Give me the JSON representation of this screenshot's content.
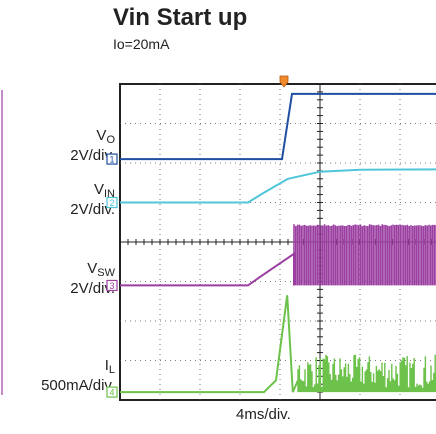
{
  "title": "Vin Start up",
  "subtitle": "Io=20mA",
  "x_scale_label": "4ms/div.",
  "colors": {
    "vo": "#1f4ea3",
    "vin": "#4fc6d8",
    "vsw": "#9b3fa1",
    "il": "#6cc24a",
    "trigger": "#f08a2c",
    "grid": "#555555",
    "frame": "#222222"
  },
  "chart_data": {
    "type": "line",
    "title": "Vin Start up",
    "subtitle": "Io=20mA",
    "xlabel": "4ms/div.",
    "ylabel": "",
    "x_unit": "div",
    "x_divisions": 10,
    "y_divisions": 8,
    "grid": true,
    "trigger_position": 4.1,
    "series": [
      {
        "key": "vo",
        "label_main": "V",
        "label_sub": "O",
        "scale": "2V/div.",
        "marker": "1",
        "color": "#1f4ea3",
        "ground_div": 6.1,
        "points": [
          [
            0,
            0
          ],
          [
            4.05,
            0
          ],
          [
            4.3,
            1.65
          ],
          [
            10,
            1.65
          ]
        ]
      },
      {
        "key": "vin",
        "label_main": "V",
        "label_sub": "IN",
        "scale": "2V/div.",
        "marker": "2",
        "color": "#4fc6d8",
        "ground_div": 5.0,
        "points": [
          [
            0,
            0
          ],
          [
            3.2,
            0
          ],
          [
            3.6,
            0.25
          ],
          [
            4.2,
            0.6
          ],
          [
            5.0,
            0.78
          ],
          [
            6.0,
            0.83
          ],
          [
            10,
            0.85
          ]
        ]
      },
      {
        "key": "vsw",
        "label_main": "V",
        "label_sub": "SW",
        "scale": "2V/div.",
        "marker": "3",
        "color": "#9b3fa1",
        "ground_div": 2.9,
        "points": [
          [
            0,
            0
          ],
          [
            3.2,
            0
          ],
          [
            3.55,
            0.25
          ],
          [
            4.35,
            0.8
          ],
          [
            4.35,
            0
          ]
        ],
        "switching": {
          "start": 4.35,
          "end": 10,
          "low": 0,
          "high": 1.55
        }
      },
      {
        "key": "il",
        "label_main": "I",
        "label_sub": "L",
        "scale": "500mA/div.",
        "marker": "4",
        "color": "#6cc24a",
        "ground_div": 0.2,
        "points": [
          [
            0,
            0
          ],
          [
            3.6,
            0
          ],
          [
            3.9,
            0.3
          ],
          [
            4.18,
            2.45
          ],
          [
            4.32,
            0.0
          ],
          [
            4.45,
            0.3
          ]
        ],
        "noise": {
          "start": 4.45,
          "end": 10,
          "low": 0.1,
          "high": 0.95
        }
      }
    ]
  }
}
